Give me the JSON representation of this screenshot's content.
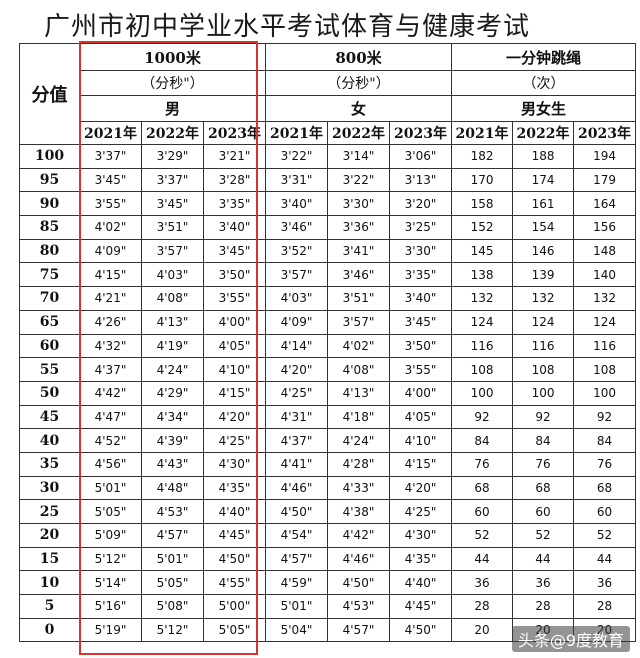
{
  "title": "广州市初中学业水平考试体育与健康考试",
  "header": {
    "score_label": "分值",
    "events": [
      {
        "name": "1000米",
        "unit": "（分秒\"）",
        "gender": "男"
      },
      {
        "name": "800米",
        "unit": "（分秒\"）",
        "gender": "女"
      },
      {
        "name": "一分钟跳绳",
        "unit": "（次）",
        "gender": "男女生"
      }
    ],
    "years": [
      "2021年",
      "2022年",
      "2023年"
    ]
  },
  "rows": [
    {
      "score": "100",
      "cells": [
        "3'37\"",
        "3'29\"",
        "3'21\"",
        "3'22\"",
        "3'14\"",
        "3'06\"",
        "182",
        "188",
        "194"
      ]
    },
    {
      "score": "95",
      "cells": [
        "3'45\"",
        "3'37\"",
        "3'28\"",
        "3'31\"",
        "3'22\"",
        "3'13\"",
        "170",
        "174",
        "179"
      ]
    },
    {
      "score": "90",
      "cells": [
        "3'55\"",
        "3'45\"",
        "3'35\"",
        "3'40\"",
        "3'30\"",
        "3'20\"",
        "158",
        "161",
        "164"
      ]
    },
    {
      "score": "85",
      "cells": [
        "4'02\"",
        "3'51\"",
        "3'40\"",
        "3'46\"",
        "3'36\"",
        "3'25\"",
        "152",
        "154",
        "156"
      ]
    },
    {
      "score": "80",
      "cells": [
        "4'09\"",
        "3'57\"",
        "3'45\"",
        "3'52\"",
        "3'41\"",
        "3'30\"",
        "145",
        "146",
        "148"
      ]
    },
    {
      "score": "75",
      "cells": [
        "4'15\"",
        "4'03\"",
        "3'50\"",
        "3'57\"",
        "3'46\"",
        "3'35\"",
        "138",
        "139",
        "140"
      ]
    },
    {
      "score": "70",
      "cells": [
        "4'21\"",
        "4'08\"",
        "3'55\"",
        "4'03\"",
        "3'51\"",
        "3'40\"",
        "132",
        "132",
        "132"
      ]
    },
    {
      "score": "65",
      "cells": [
        "4'26\"",
        "4'13\"",
        "4'00\"",
        "4'09\"",
        "3'57\"",
        "3'45\"",
        "124",
        "124",
        "124"
      ]
    },
    {
      "score": "60",
      "cells": [
        "4'32\"",
        "4'19\"",
        "4'05\"",
        "4'14\"",
        "4'02\"",
        "3'50\"",
        "116",
        "116",
        "116"
      ]
    },
    {
      "score": "55",
      "cells": [
        "4'37\"",
        "4'24\"",
        "4'10\"",
        "4'20\"",
        "4'08\"",
        "3'55\"",
        "108",
        "108",
        "108"
      ]
    },
    {
      "score": "50",
      "cells": [
        "4'42\"",
        "4'29\"",
        "4'15\"",
        "4'25\"",
        "4'13\"",
        "4'00\"",
        "100",
        "100",
        "100"
      ]
    },
    {
      "score": "45",
      "cells": [
        "4'47\"",
        "4'34\"",
        "4'20\"",
        "4'31\"",
        "4'18\"",
        "4'05\"",
        "92",
        "92",
        "92"
      ]
    },
    {
      "score": "40",
      "cells": [
        "4'52\"",
        "4'39\"",
        "4'25\"",
        "4'37\"",
        "4'24\"",
        "4'10\"",
        "84",
        "84",
        "84"
      ]
    },
    {
      "score": "35",
      "cells": [
        "4'56\"",
        "4'43\"",
        "4'30\"",
        "4'41\"",
        "4'28\"",
        "4'15\"",
        "76",
        "76",
        "76"
      ]
    },
    {
      "score": "30",
      "cells": [
        "5'01\"",
        "4'48\"",
        "4'35\"",
        "4'46\"",
        "4'33\"",
        "4'20\"",
        "68",
        "68",
        "68"
      ]
    },
    {
      "score": "25",
      "cells": [
        "5'05\"",
        "4'53\"",
        "4'40\"",
        "4'50\"",
        "4'38\"",
        "4'25\"",
        "60",
        "60",
        "60"
      ]
    },
    {
      "score": "20",
      "cells": [
        "5'09\"",
        "4'57\"",
        "4'45\"",
        "4'54\"",
        "4'42\"",
        "4'30\"",
        "52",
        "52",
        "52"
      ]
    },
    {
      "score": "15",
      "cells": [
        "5'12\"",
        "5'01\"",
        "4'50\"",
        "4'57\"",
        "4'46\"",
        "4'35\"",
        "44",
        "44",
        "44"
      ]
    },
    {
      "score": "10",
      "cells": [
        "5'14\"",
        "5'05\"",
        "4'55\"",
        "4'59\"",
        "4'50\"",
        "4'40\"",
        "36",
        "36",
        "36"
      ]
    },
    {
      "score": "5",
      "cells": [
        "5'16\"",
        "5'08\"",
        "5'00\"",
        "5'01\"",
        "4'53\"",
        "4'45\"",
        "28",
        "28",
        "28"
      ]
    },
    {
      "score": "0",
      "cells": [
        "5'19\"",
        "5'12\"",
        "5'05\"",
        "5'04\"",
        "4'57\"",
        "4'50\"",
        "20",
        "20",
        "20"
      ]
    }
  ],
  "highlight_color": "#d9342b",
  "watermark": "头条@9度教育"
}
